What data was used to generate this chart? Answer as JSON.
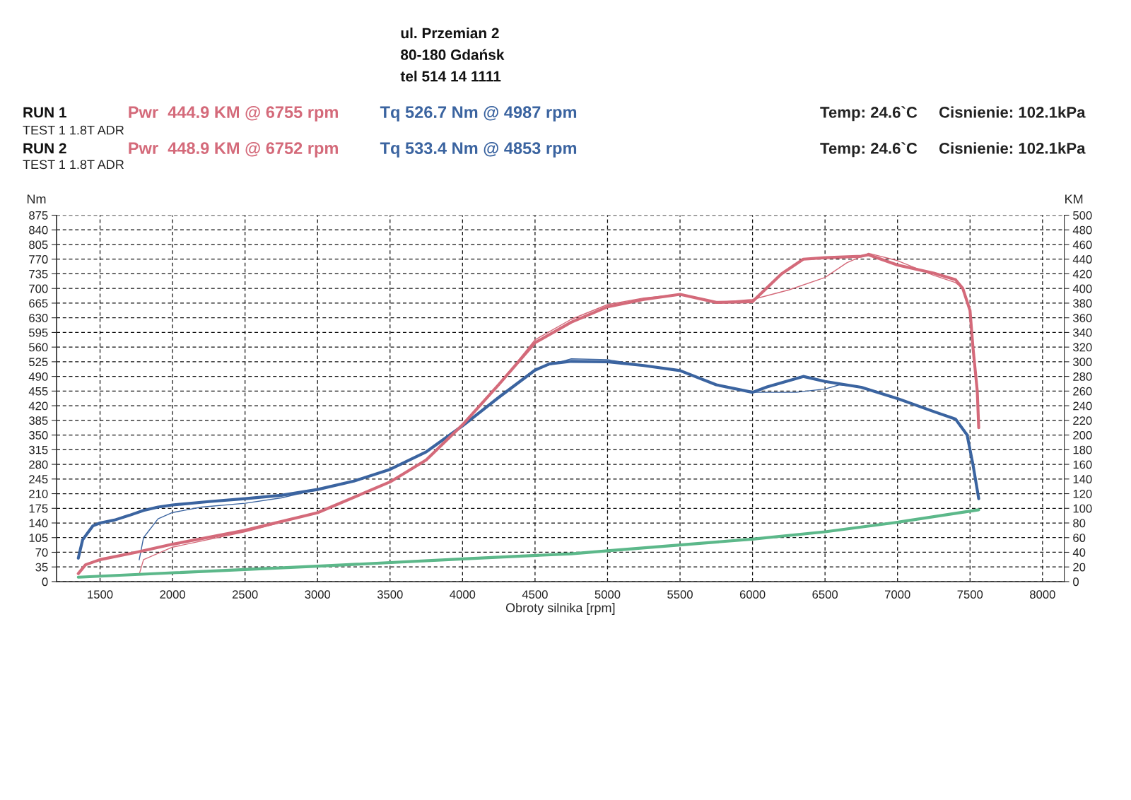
{
  "chart_data": {
    "type": "line",
    "xlabel": "Obroty silnika [rpm]",
    "ylabel": "Nm",
    "y2label": "KM",
    "xlim": [
      1200,
      8150
    ],
    "xticks": [
      1500,
      2000,
      2500,
      3000,
      3500,
      4000,
      4500,
      5000,
      5500,
      6000,
      6500,
      7000,
      7500,
      8000
    ],
    "ylim": [
      0,
      875
    ],
    "yticks": [
      0,
      35,
      70,
      105,
      140,
      175,
      210,
      245,
      280,
      315,
      350,
      385,
      420,
      455,
      490,
      525,
      560,
      595,
      630,
      665,
      700,
      735,
      770,
      805,
      840,
      875
    ],
    "y2lim": [
      0,
      500
    ],
    "y2ticks": [
      0,
      20,
      40,
      60,
      80,
      100,
      120,
      140,
      160,
      180,
      200,
      220,
      240,
      260,
      280,
      300,
      320,
      340,
      360,
      380,
      400,
      420,
      440,
      460,
      480,
      500
    ],
    "grid": true,
    "marker": "none",
    "line_style": "solid",
    "series": [
      {
        "color": "#3b64a0",
        "axis": "y",
        "x": [
          1350,
          1380,
          1450,
          1500,
          1600,
          1700,
          1800,
          1900,
          2000,
          2250,
          2500,
          2750,
          3000,
          3250,
          3500,
          3750,
          4000,
          4250,
          4500,
          4600,
          4750,
          5000,
          5250,
          5500,
          5750,
          6000,
          6100,
          6350,
          6500,
          6750,
          7000,
          7250,
          7400,
          7480,
          7520,
          7560
        ],
        "values": [
          56,
          100,
          133,
          140,
          147,
          158,
          170,
          178,
          183,
          191,
          198,
          206,
          220,
          240,
          268,
          310,
          372,
          440,
          505,
          520,
          526,
          525,
          516,
          504,
          470,
          452,
          465,
          490,
          478,
          464,
          437,
          406,
          388,
          350,
          280,
          198
        ]
      },
      {
        "color": "#3b64a0",
        "axis": "y",
        "x": [
          1770,
          1800,
          1900,
          2000,
          2200,
          2500,
          2750,
          3000,
          3250,
          3500,
          3750,
          4000,
          4250,
          4500,
          4750,
          5000,
          5250,
          5500,
          5750,
          6000,
          6300,
          6500,
          6600,
          6750,
          7000,
          7250,
          7400,
          7480,
          7520,
          7560
        ],
        "values": [
          52,
          105,
          150,
          165,
          178,
          187,
          200,
          220,
          240,
          268,
          310,
          372,
          440,
          508,
          532,
          530,
          516,
          504,
          470,
          452,
          452,
          460,
          470,
          464,
          437,
          406,
          388,
          350,
          280,
          198
        ]
      },
      {
        "color": "#d46a7a",
        "axis": "y2",
        "x": [
          1350,
          1400,
          1500,
          1750,
          2000,
          2500,
          3000,
          3500,
          3750,
          4000,
          4250,
          4500,
          4750,
          5000,
          5250,
          5500,
          5750,
          6000,
          6200,
          6350,
          6500,
          6750,
          6800,
          7000,
          7250,
          7400,
          7450,
          7500,
          7520,
          7550,
          7560
        ],
        "values": [
          11,
          23,
          30,
          40,
          51,
          70,
          94,
          136,
          166,
          214,
          269,
          326,
          354,
          375,
          385,
          392,
          381,
          382,
          420,
          440,
          442,
          444,
          446,
          432,
          421,
          412,
          400,
          370,
          320,
          260,
          210
        ]
      },
      {
        "color": "#d46a7a",
        "axis": "y2",
        "x": [
          1770,
          1800,
          2000,
          2500,
          3000,
          3500,
          3750,
          4000,
          4250,
          4500,
          4750,
          5000,
          5250,
          5500,
          5750,
          6000,
          6250,
          6500,
          6650,
          6800,
          7000,
          7250,
          7400,
          7450,
          7500,
          7520,
          7550,
          7560
        ],
        "values": [
          10,
          30,
          47,
          68,
          94,
          136,
          166,
          214,
          269,
          330,
          358,
          378,
          387,
          392,
          381,
          385,
          398,
          415,
          435,
          448,
          438,
          418,
          408,
          400,
          370,
          320,
          260,
          210
        ]
      },
      {
        "color": "#5cb88a",
        "axis": "y2",
        "x": [
          1350,
          2000,
          3000,
          4000,
          4750,
          5000,
          5500,
          6000,
          6500,
          7000,
          7560
        ],
        "values": [
          6,
          12,
          21,
          31,
          38,
          42,
          50,
          58,
          68,
          81,
          98
        ]
      }
    ],
    "annotations": [
      "ul. Przemian 2",
      "80-180 Gdańsk",
      "tel 514 14 1111",
      "RUN 1",
      "Pwr  444.9 KM @ 6755 rpm",
      "Tq 526.7 Nm @ 4987 rpm",
      "Temp: 24.6`C",
      "Cisnienie: 102.1kPa",
      "TEST 1 1.8T ADR",
      "RUN 2",
      "Pwr  448.9 KM @ 6752 rpm",
      "Tq 533.4 Nm @ 4853 rpm",
      "Temp: 24.6`C",
      "Cisnienie: 102.1kPa",
      "TEST 1 1.8T ADR"
    ]
  }
}
